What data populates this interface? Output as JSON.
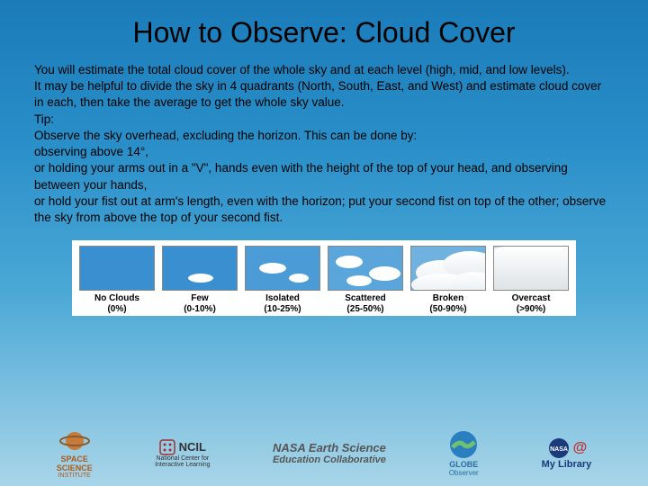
{
  "title": "How to Observe: Cloud Cover",
  "body": {
    "p1": "You will estimate the total cloud cover of the whole sky and at each level (high, mid, and low levels).",
    "p2": "It may be helpful to divide the sky in 4 quadrants (North, South, East, and West) and estimate cloud cover in each, then take the average to get the whole sky value.",
    "p3": "Tip:",
    "p4": "Observe the sky overhead, excluding the horizon. This can be done by:",
    "p5": "observing above 14°,",
    "p6": "or holding your arms out in a \"V\", hands even with the height of the top of your head, and observing between your hands,",
    "p7": "or hold your fist out at arm's length, even with the horizon; put your second fist on top of the other; observe the sky from above the top of your second fist."
  },
  "chart": {
    "background": "#ffffff",
    "items": [
      {
        "label": "No Clouds",
        "pct": "(0%)",
        "sky": "#3a8fd0",
        "coverage": 0
      },
      {
        "label": "Few",
        "pct": "(0-10%)",
        "sky": "#3a8fd0",
        "coverage": 8
      },
      {
        "label": "Isolated",
        "pct": "(10-25%)",
        "sky": "#4a9bd6",
        "coverage": 18
      },
      {
        "label": "Scattered",
        "pct": "(25-50%)",
        "sky": "#5aa6db",
        "coverage": 38
      },
      {
        "label": "Broken",
        "pct": "(50-90%)",
        "sky": "#6fb2e0",
        "coverage": 70
      },
      {
        "label": "Overcast",
        "pct": "(>90%)",
        "sky": "#d0d8dd",
        "coverage": 98
      }
    ],
    "label_fontsize": 10,
    "label_weight": 700
  },
  "logos": {
    "l1a": "SPACE",
    "l1b": "SCIENCE",
    "l1c": "INSTITUTE",
    "l2a": "NCIL",
    "l2b": "National Center for",
    "l2c": "Interactive Learning",
    "l3a": "NASA Earth Science",
    "l3b": "Education Collaborative",
    "l4a": "GLOBE",
    "l4b": "Observer",
    "l5a": "NASA@",
    "l5b": "My Library"
  },
  "colors": {
    "bg_top": "#1a7bb8",
    "bg_bottom": "#a8d5e8",
    "text": "#000000"
  }
}
